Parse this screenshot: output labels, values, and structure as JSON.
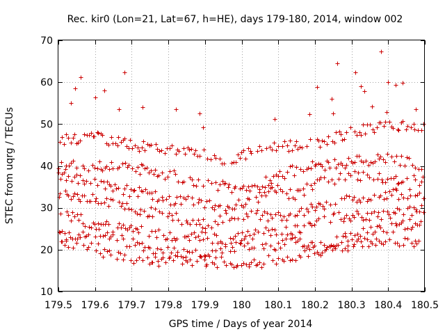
{
  "chart_data": {
    "type": "scatter",
    "title": "Rec. kir0 (Lon=21, Lat=67, h=HE), days 179-180, 2014, window 002",
    "xlabel": "GPS time / Days of year 2014",
    "ylabel": "STEC from uqrg / TECUs",
    "xlim": [
      179.5,
      180.5
    ],
    "ylim": [
      10,
      70
    ],
    "xticks": [
      179.5,
      179.6,
      179.7,
      179.8,
      179.9,
      180.0,
      180.1,
      180.2,
      180.3,
      180.4,
      180.5
    ],
    "xtick_labels": [
      "179.5",
      "179.6",
      "179.7",
      "179.8",
      "179.9",
      "180",
      "180.1",
      "180.2",
      "180.3",
      "180.4",
      "180.5"
    ],
    "yticks": [
      10,
      20,
      30,
      40,
      50,
      60,
      70
    ],
    "ytick_labels": [
      "10",
      "20",
      "30",
      "40",
      "50",
      "60",
      "70"
    ],
    "grid": true,
    "marker": "+",
    "color": "#cc0000",
    "bands": [
      {
        "name": "band-1",
        "knots": [
          [
            179.5,
            21.5
          ],
          [
            179.6,
            20.5
          ],
          [
            179.65,
            18.5
          ],
          [
            179.75,
            17.5
          ],
          [
            179.85,
            17.5
          ],
          [
            179.95,
            17.0
          ],
          [
            180.0,
            16.5
          ],
          [
            180.05,
            17.0
          ],
          [
            180.1,
            18.0
          ],
          [
            180.2,
            19.5
          ],
          [
            180.3,
            21.0
          ],
          [
            180.35,
            22.0
          ],
          [
            180.45,
            21.5
          ],
          [
            180.5,
            20.5
          ]
        ]
      },
      {
        "name": "band-2",
        "knots": [
          [
            179.5,
            23.5
          ],
          [
            179.6,
            24.0
          ],
          [
            179.7,
            21.5
          ],
          [
            179.8,
            19.5
          ],
          [
            179.9,
            19.0
          ],
          [
            179.95,
            19.5
          ],
          [
            180.0,
            21.0
          ],
          [
            180.05,
            20.5
          ],
          [
            180.1,
            21.0
          ],
          [
            180.15,
            22.0
          ],
          [
            180.2,
            21.5
          ],
          [
            180.25,
            22.0
          ],
          [
            180.3,
            23.5
          ],
          [
            180.4,
            25.0
          ],
          [
            180.5,
            27.0
          ]
        ]
      },
      {
        "name": "band-3",
        "knots": [
          [
            179.5,
            29.0
          ],
          [
            179.6,
            26.0
          ],
          [
            179.7,
            25.0
          ],
          [
            179.8,
            23.5
          ],
          [
            179.9,
            23.0
          ],
          [
            179.95,
            22.5
          ],
          [
            180.0,
            23.0
          ],
          [
            180.05,
            24.0
          ],
          [
            180.1,
            24.5
          ],
          [
            180.15,
            25.0
          ],
          [
            180.2,
            27.0
          ],
          [
            180.3,
            28.0
          ],
          [
            180.4,
            28.5
          ],
          [
            180.5,
            30.0
          ]
        ]
      },
      {
        "name": "band-4",
        "knots": [
          [
            179.5,
            33.0
          ],
          [
            179.6,
            32.0
          ],
          [
            179.7,
            30.0
          ],
          [
            179.8,
            28.0
          ],
          [
            179.9,
            26.0
          ],
          [
            179.95,
            27.5
          ],
          [
            180.0,
            28.5
          ],
          [
            180.1,
            28.0
          ],
          [
            180.2,
            30.0
          ],
          [
            180.3,
            32.0
          ],
          [
            180.4,
            33.5
          ],
          [
            180.5,
            33.0
          ]
        ]
      },
      {
        "name": "band-5",
        "knots": [
          [
            179.5,
            38.0
          ],
          [
            179.6,
            36.0
          ],
          [
            179.7,
            34.0
          ],
          [
            179.8,
            32.0
          ],
          [
            179.9,
            31.0
          ],
          [
            179.95,
            30.0
          ],
          [
            180.0,
            31.5
          ],
          [
            180.05,
            32.5
          ],
          [
            180.1,
            34.5
          ],
          [
            180.15,
            33.0
          ],
          [
            180.2,
            36.0
          ],
          [
            180.3,
            37.5
          ],
          [
            180.4,
            37.0
          ],
          [
            180.5,
            36.5
          ]
        ]
      },
      {
        "name": "band-6",
        "knots": [
          [
            179.5,
            40.5
          ],
          [
            179.6,
            40.0
          ],
          [
            179.7,
            39.5
          ],
          [
            179.8,
            38.0
          ],
          [
            179.9,
            36.0
          ],
          [
            179.95,
            35.0
          ],
          [
            180.0,
            34.5
          ],
          [
            180.05,
            35.5
          ],
          [
            180.1,
            38.0
          ],
          [
            180.2,
            40.0
          ],
          [
            180.3,
            41.0
          ],
          [
            180.4,
            42.0
          ],
          [
            180.5,
            40.0
          ]
        ]
      },
      {
        "name": "band-7",
        "knots": [
          [
            179.5,
            46.0
          ],
          [
            179.6,
            47.0
          ],
          [
            179.7,
            45.0
          ],
          [
            179.8,
            44.0
          ],
          [
            179.9,
            42.5
          ],
          [
            179.95,
            41.0
          ],
          [
            180.05,
            44.0
          ],
          [
            180.1,
            44.5
          ],
          [
            180.15,
            45.0
          ],
          [
            180.2,
            45.5
          ],
          [
            180.3,
            48.0
          ],
          [
            180.4,
            50.0
          ],
          [
            180.5,
            49.0
          ]
        ]
      }
    ],
    "isolated_points": [
      [
        179.535,
        55.0
      ],
      [
        179.545,
        58.5
      ],
      [
        179.56,
        61.2
      ],
      [
        179.6,
        56.3
      ],
      [
        179.625,
        58.0
      ],
      [
        179.665,
        53.5
      ],
      [
        179.68,
        62.3
      ],
      [
        179.73,
        54.0
      ],
      [
        179.82,
        53.6
      ],
      [
        179.885,
        52.6
      ],
      [
        179.895,
        49.2
      ],
      [
        180.09,
        51.3
      ],
      [
        180.185,
        52.3
      ],
      [
        180.205,
        58.9
      ],
      [
        180.245,
        56.0
      ],
      [
        180.25,
        52.6
      ],
      [
        180.26,
        64.5
      ],
      [
        180.31,
        62.4
      ],
      [
        180.325,
        59.1
      ],
      [
        180.335,
        57.9
      ],
      [
        180.355,
        54.2
      ],
      [
        180.38,
        67.3
      ],
      [
        180.4,
        60.1
      ],
      [
        180.42,
        59.4
      ],
      [
        180.44,
        59.8
      ],
      [
        180.475,
        53.6
      ],
      [
        180.395,
        52.8
      ]
    ]
  }
}
